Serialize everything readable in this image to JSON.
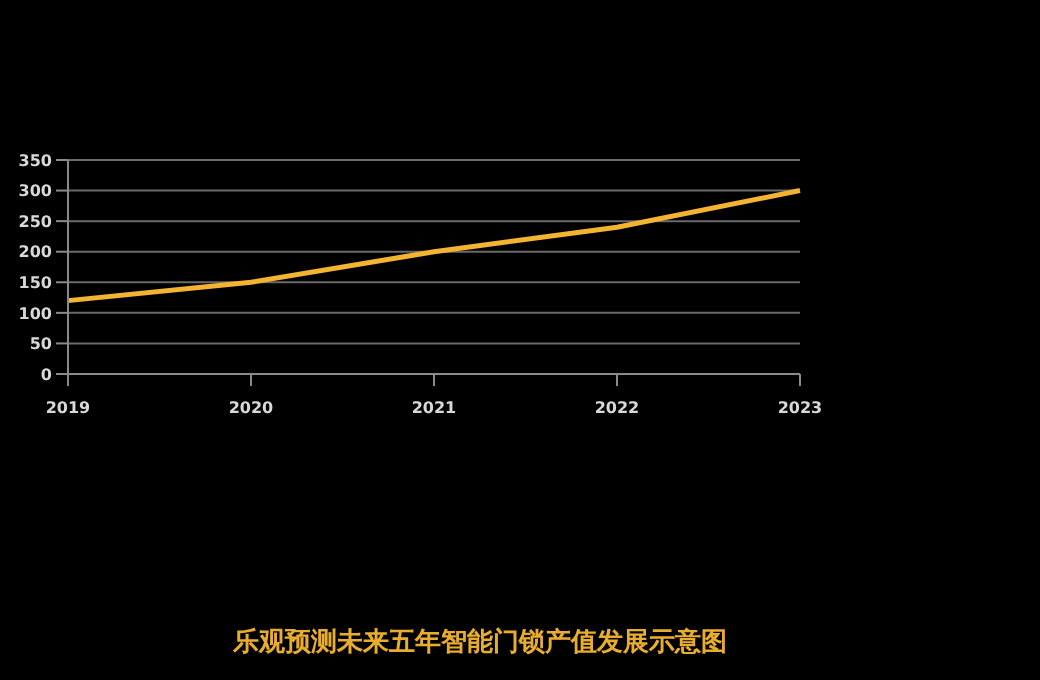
{
  "chart_data": {
    "type": "line",
    "title": "乐观预测未来五年智能门锁产值发展示意图",
    "categories": [
      "2019",
      "2020",
      "2021",
      "2022",
      "2023"
    ],
    "series": [
      {
        "color": "#f2b431",
        "values": [
          120,
          150,
          200,
          240,
          300
        ]
      }
    ],
    "ylim": [
      0,
      350
    ],
    "yticks": [
      0,
      50,
      100,
      150,
      200,
      250,
      300,
      350
    ],
    "grid": "y",
    "legend": false,
    "marker": "none",
    "line_style": "solid"
  }
}
